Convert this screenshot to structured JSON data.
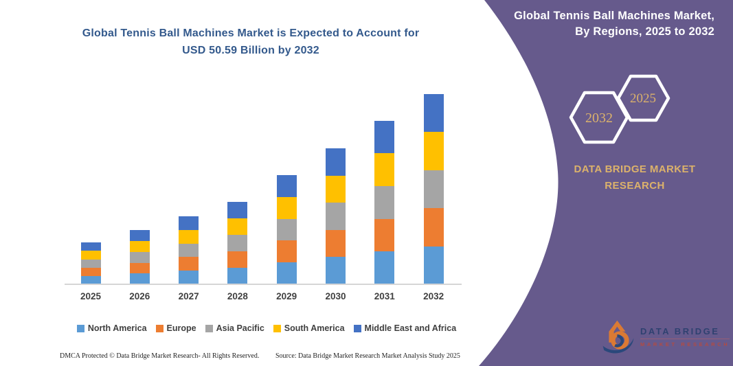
{
  "left": {
    "title_line1": "Global Tennis Ball Machines Market is Expected to Account for",
    "title_line2": "USD 50.59 Billion by 2032",
    "footer_dmca": "DMCA Protected © Data Bridge Market Research-  All Rights Reserved.",
    "footer_source": "Source: Data Bridge Market Research  Market Analysis Study 2025"
  },
  "chart_data": {
    "type": "bar",
    "stacked": true,
    "title": "Global Tennis Ball Machines Market is Expected to Account for USD 50.59 Billion by 2032",
    "xlabel": "",
    "ylabel": "",
    "ylim": [
      0,
      55
    ],
    "grid": false,
    "legend_position": "bottom",
    "categories": [
      "2025",
      "2026",
      "2027",
      "2028",
      "2029",
      "2030",
      "2031",
      "2032"
    ],
    "series": [
      {
        "name": "North America",
        "color": "#5B9BD5",
        "values": [
          2.22,
          2.87,
          3.62,
          4.37,
          5.8,
          7.23,
          8.7,
          10.12
        ]
      },
      {
        "name": "Europe",
        "color": "#ED7D31",
        "values": [
          2.22,
          2.87,
          3.62,
          4.37,
          5.8,
          7.23,
          8.7,
          10.12
        ]
      },
      {
        "name": "Asia Pacific",
        "color": "#A5A5A5",
        "values": [
          2.22,
          2.87,
          3.62,
          4.37,
          5.8,
          7.23,
          8.7,
          10.12
        ]
      },
      {
        "name": "South America",
        "color": "#FFC000",
        "values": [
          2.22,
          2.87,
          3.62,
          4.37,
          5.8,
          7.23,
          8.7,
          10.12
        ]
      },
      {
        "name": "Middle East and Africa",
        "color": "#4472C4",
        "values": [
          2.22,
          2.87,
          3.62,
          4.37,
          5.8,
          7.23,
          8.7,
          10.12
        ]
      }
    ],
    "totals_usd_billion": [
      11.1,
      14.35,
      18.1,
      21.85,
      29.0,
      36.15,
      43.5,
      50.59
    ]
  },
  "panel": {
    "title_line1": "Global Tennis Ball Machines Market,",
    "title_line2": "By Regions, 2025 to 2032",
    "hexagon_back_year": "2032",
    "hexagon_front_year": "2025",
    "brand_line1": "DATA BRIDGE MARKET",
    "brand_line2": "RESEARCH",
    "colors": {
      "panel": "#665A8C",
      "gold": "#DCB26B"
    }
  },
  "logo": {
    "name_top": "DATA BRIDGE",
    "name_bottom": "MARKET RESEARCH"
  }
}
